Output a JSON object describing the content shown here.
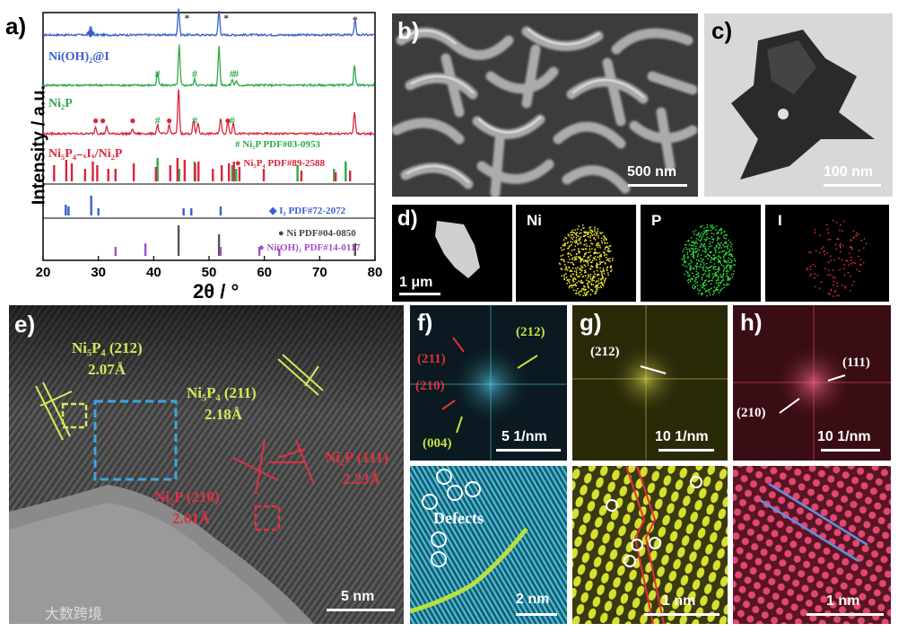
{
  "figure": {
    "panel_a": {
      "label": "a)",
      "ylabel": "Intensity / a.u.",
      "xlabel": "2θ / °",
      "xticks": [
        "20",
        "30",
        "40",
        "50",
        "60",
        "70",
        "80"
      ],
      "series_labels": [
        "Ni(OH)₂@I",
        "Ni₂P",
        "Ni₅P₄₋ₓIₓ/Ni₂P"
      ],
      "legend_ni2p": "# Ni₂P PDF#03-0953",
      "legend_ni5p4": "● Ni₅P₄ PDF#89-2588",
      "legend_i2": "◆ I₂ PDF#72-2072",
      "legend_ni": "● Ni PDF#04-0850",
      "legend_nioh": "● Ni(OH)₂ PDF#14-0117"
    },
    "panel_b": {
      "label": "b)",
      "scale": "500 nm"
    },
    "panel_c": {
      "label": "c)",
      "scale": "100 nm"
    },
    "panel_d": {
      "label": "d)",
      "scale": "1 μm",
      "maps": [
        "Ni",
        "P",
        "I"
      ]
    },
    "panel_e": {
      "label": "e)",
      "ann1": "Ni₅P₄ (212)",
      "ann1v": "2.07Å",
      "ann2": "Ni₅P₄ (211)",
      "ann2v": "2.18Å",
      "ann3": "Ni₂P (111)",
      "ann3v": "2.23Å",
      "ann4": "Ni₂P (210)",
      "ann4v": "2.01Å",
      "scale": "5 nm"
    },
    "panel_f": {
      "label": "f)",
      "p1": "(211)",
      "p2": "(210)",
      "p3": "(212)",
      "p4": "(004)",
      "scale": "5 1/nm",
      "defects": "Defects",
      "scale2": "2 nm"
    },
    "panel_g": {
      "label": "g)",
      "p1": "(212)",
      "scale": "10 1/nm",
      "scale2": "1 nm"
    },
    "panel_h": {
      "label": "h)",
      "p1": "(111)",
      "p2": "(210)",
      "scale": "10 1/nm",
      "scale2": "1 nm"
    },
    "watermark": "大数跨境"
  },
  "chart_data": {
    "type": "line",
    "title": "",
    "xlabel": "2θ / °",
    "ylabel": "Intensity / a.u.",
    "xlim": [
      20,
      80
    ],
    "series": [
      {
        "name": "Ni(OH)₂@I",
        "color": "#3a5fcd",
        "peaks": [
          [
            28.6,
            0.35
          ],
          [
            44.5,
            1.0
          ],
          [
            51.8,
            0.9
          ],
          [
            76.4,
            0.55
          ]
        ]
      },
      {
        "name": "Ni₂P",
        "color": "#2ea84a",
        "peaks": [
          [
            40.7,
            0.3
          ],
          [
            44.6,
            1.0
          ],
          [
            47.4,
            0.15
          ],
          [
            51.8,
            1.0
          ],
          [
            54.2,
            0.15
          ],
          [
            54.9,
            0.1
          ],
          [
            76.3,
            0.5
          ]
        ]
      },
      {
        "name": "Ni₅P₄₋ₓIₓ/Ni₂P",
        "color": "#d9263a",
        "peaks": [
          [
            29.5,
            0.15
          ],
          [
            31.5,
            0.15
          ],
          [
            36.2,
            0.1
          ],
          [
            40.7,
            0.2
          ],
          [
            42.8,
            0.2
          ],
          [
            44.5,
            1.0
          ],
          [
            47.2,
            0.3
          ],
          [
            48.0,
            0.25
          ],
          [
            52.1,
            0.35
          ],
          [
            53.4,
            0.3
          ],
          [
            54.4,
            0.25
          ],
          [
            76.3,
            0.5
          ]
        ]
      }
    ],
    "reference_lines": [
      {
        "name": "Ni₂P PDF#03-0953",
        "color": "#2ea84a",
        "x": [
          40.7,
          44.6,
          47.4,
          54.2,
          54.9,
          66.0,
          72.6,
          74.7
        ]
      },
      {
        "name": "Ni₅P₄ PDF#89-2588",
        "color": "#d9263a",
        "x": [
          21.8,
          24.0,
          25.0,
          27.4,
          28.8,
          29.6,
          31.6,
          32.9,
          36.2,
          40.2,
          42.8,
          44.1,
          45.4,
          47.3,
          47.9,
          50.5,
          52.1,
          53.4,
          54.3,
          55.3,
          59.7,
          66.5,
          72.7,
          75.3
        ]
      },
      {
        "name": "I₂ PDF#72-2072",
        "color": "#3a5fcd",
        "x": [
          24.1,
          24.6,
          28.7,
          30.0,
          45.4,
          46.8,
          52.1
        ]
      },
      {
        "name": "Ni PDF#04-0850",
        "color": "#555555",
        "x": [
          44.5,
          51.8,
          76.4
        ]
      },
      {
        "name": "Ni(OH)₂ PDF#14-0117",
        "color": "#a24fc4",
        "x": [
          33.1,
          38.5,
          52.1,
          59.1,
          62.7
        ]
      }
    ]
  }
}
